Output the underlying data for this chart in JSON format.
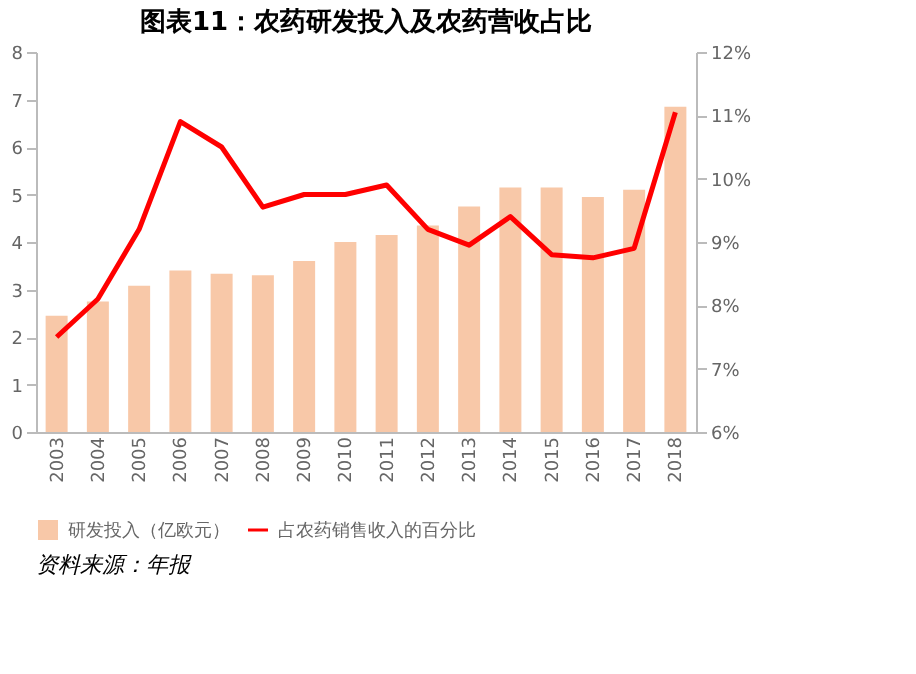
{
  "chart_data": {
    "type": "bar",
    "title": "图表11：农药研发投入及农药营收占比",
    "categories": [
      "2003",
      "2004",
      "2005",
      "2006",
      "2007",
      "2008",
      "2009",
      "2010",
      "2011",
      "2012",
      "2013",
      "2014",
      "2015",
      "2016",
      "2017",
      "2018"
    ],
    "series": [
      {
        "name": "研发投入（亿欧元）",
        "color": "#f8c8a8",
        "values": [
          2.45,
          2.75,
          3.08,
          3.4,
          3.33,
          3.3,
          3.6,
          4.0,
          4.15,
          4.35,
          4.75,
          5.15,
          5.15,
          4.95,
          5.1,
          6.85
        ]
      },
      {
        "name": "占农药销售收入的百分比",
        "type": "line",
        "axis": "y2",
        "color": "#ff0000",
        "values": [
          7.5,
          8.1,
          9.2,
          10.9,
          10.5,
          9.55,
          9.75,
          9.75,
          9.9,
          9.2,
          8.95,
          9.4,
          8.8,
          8.75,
          8.9,
          11.05
        ]
      }
    ],
    "ylim": [
      0,
      8
    ],
    "yticks": [
      0,
      1,
      2,
      3,
      4,
      5,
      6,
      7,
      8
    ],
    "y2lim": [
      6,
      12
    ],
    "y2ticks": [
      {
        "value": 6,
        "label": "6%"
      },
      {
        "value": 7,
        "label": "7%"
      },
      {
        "value": 8,
        "label": "8%"
      },
      {
        "value": 9,
        "label": "9%"
      },
      {
        "value": 10,
        "label": "10%"
      },
      {
        "value": 11,
        "label": "11%"
      },
      {
        "value": 12,
        "label": "12%"
      }
    ],
    "legend": "bottom",
    "grid": false,
    "marker": "none",
    "line_style": "solid",
    "annotations": [
      "资料来源：年报"
    ]
  }
}
